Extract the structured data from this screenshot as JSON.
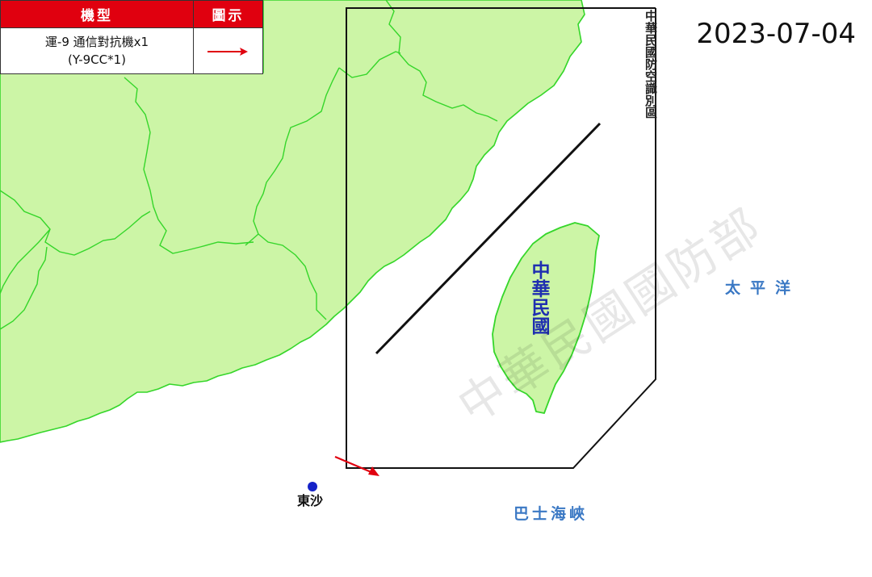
{
  "legend": {
    "header_type": "機型",
    "header_symbol": "圖示",
    "aircraft_line1": "運-9 通信對抗機x1",
    "aircraft_line2": "(Y-9CC*1)",
    "arrow_color": "#e0000f"
  },
  "date": "2023-07-04",
  "adiz_label": "中華民國防空識別區",
  "roc_label": "中華民國",
  "pacific_label": "太平洋",
  "bashi_label": "巴士海峽",
  "dongsha_label": "東沙",
  "watermark": "中華民國國防部",
  "colors": {
    "land": "#ccf5a6",
    "land_border": "#35d62a",
    "legend_header": "#e0000f",
    "flight_arrow": "#e0000f",
    "dongsha_dot": "#1522c8",
    "roc_text": "#1f2fb0",
    "sea_text": "#3a78c4"
  }
}
